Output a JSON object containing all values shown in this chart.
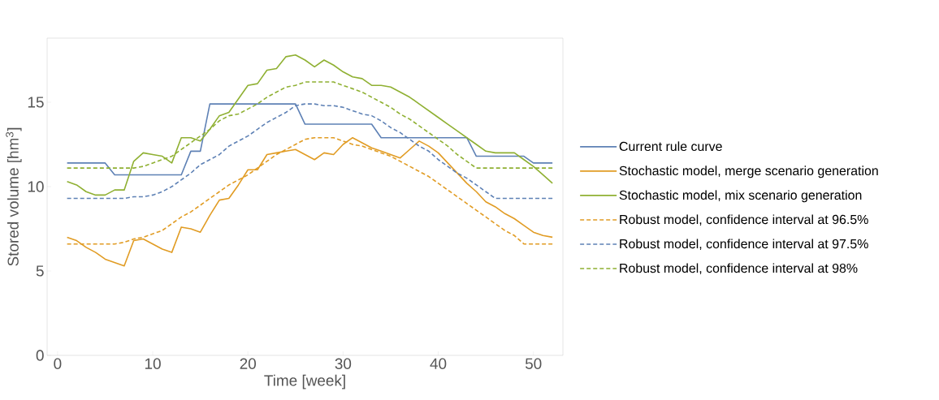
{
  "chart_data": {
    "type": "line",
    "xlabel": "Time [week]",
    "ylabel": "Stored volume [hm$^{3}$]",
    "xlim": [
      -1.1,
      53.1
    ],
    "ylim": [
      0,
      18.8
    ],
    "xticks": [
      0,
      10,
      20,
      30,
      40,
      50
    ],
    "yticks": [
      0,
      5,
      10,
      15
    ],
    "legend": "right",
    "x": [
      1,
      2,
      3,
      4,
      5,
      6,
      7,
      8,
      9,
      10,
      11,
      12,
      13,
      14,
      15,
      16,
      17,
      18,
      19,
      20,
      21,
      22,
      23,
      24,
      25,
      26,
      27,
      28,
      29,
      30,
      31,
      32,
      33,
      34,
      35,
      36,
      37,
      38,
      39,
      40,
      41,
      42,
      43,
      44,
      45,
      46,
      47,
      48,
      49,
      50,
      51,
      52
    ],
    "series": [
      {
        "name": "Current rule curve",
        "color": "#5e81b5",
        "line_style": "solid",
        "x": [
          1,
          5,
          6,
          13,
          14,
          15,
          16,
          25,
          26,
          33,
          34,
          43,
          44,
          49,
          50,
          52
        ],
        "values": [
          11.4,
          11.4,
          10.7,
          10.7,
          12.1,
          12.1,
          14.9,
          14.9,
          13.7,
          13.7,
          12.9,
          12.9,
          11.8,
          11.8,
          11.4,
          11.4
        ]
      },
      {
        "name": "Stochastic model, merge scenario generation",
        "color": "#e19c24",
        "line_style": "solid",
        "values": [
          7.0,
          6.8,
          6.4,
          6.1,
          5.7,
          5.5,
          5.3,
          6.8,
          6.9,
          6.6,
          6.3,
          6.1,
          7.6,
          7.5,
          7.3,
          8.3,
          9.2,
          9.3,
          10.1,
          11.0,
          11.0,
          11.9,
          12.0,
          12.1,
          12.2,
          11.9,
          11.6,
          12.0,
          11.9,
          12.5,
          12.9,
          12.6,
          12.3,
          12.1,
          11.9,
          11.7,
          12.2,
          12.7,
          12.4,
          12.0,
          11.4,
          10.8,
          10.2,
          9.7,
          9.1,
          8.8,
          8.4,
          8.1,
          7.7,
          7.3,
          7.1,
          7.0
        ]
      },
      {
        "name": "Stochastic model, mix scenario generation",
        "color": "#8fb032",
        "line_style": "solid",
        "values": [
          10.3,
          10.1,
          9.7,
          9.5,
          9.5,
          9.8,
          9.8,
          11.5,
          12.0,
          11.9,
          11.8,
          11.4,
          12.9,
          12.9,
          12.7,
          13.4,
          14.2,
          14.4,
          15.2,
          16.0,
          16.1,
          16.9,
          17.0,
          17.7,
          17.8,
          17.5,
          17.1,
          17.5,
          17.2,
          16.8,
          16.5,
          16.4,
          16.0,
          16.0,
          15.9,
          15.6,
          15.3,
          14.9,
          14.5,
          14.1,
          13.7,
          13.3,
          12.9,
          12.5,
          12.1,
          12.0,
          12.0,
          12.0,
          11.6,
          11.2,
          10.7,
          10.2
        ]
      },
      {
        "name": "Robust model, confidence interval at 96.5%",
        "color": "#e19c24",
        "line_style": "dashed",
        "values": [
          6.6,
          6.6,
          6.6,
          6.6,
          6.6,
          6.6,
          6.7,
          6.9,
          7.0,
          7.2,
          7.4,
          7.8,
          8.2,
          8.5,
          8.9,
          9.3,
          9.7,
          10.1,
          10.4,
          10.7,
          11.1,
          11.5,
          11.9,
          12.2,
          12.5,
          12.8,
          12.9,
          12.9,
          12.9,
          12.7,
          12.5,
          12.4,
          12.2,
          12.0,
          11.8,
          11.5,
          11.2,
          10.9,
          10.6,
          10.2,
          9.8,
          9.4,
          9.0,
          8.6,
          8.2,
          7.8,
          7.4,
          7.1,
          6.6,
          6.6,
          6.6,
          6.6
        ]
      },
      {
        "name": "Robust model, confidence interval at 97.5%",
        "color": "#5e81b5",
        "line_style": "dashed",
        "values": [
          9.3,
          9.3,
          9.3,
          9.3,
          9.3,
          9.3,
          9.3,
          9.4,
          9.4,
          9.5,
          9.7,
          10.0,
          10.4,
          10.8,
          11.3,
          11.6,
          11.9,
          12.4,
          12.7,
          13.0,
          13.4,
          13.8,
          14.1,
          14.4,
          14.8,
          14.9,
          14.9,
          14.8,
          14.8,
          14.7,
          14.5,
          14.3,
          14.2,
          13.9,
          13.5,
          13.2,
          12.8,
          12.4,
          12.1,
          11.6,
          11.2,
          10.8,
          10.5,
          10.1,
          9.7,
          9.3,
          9.3,
          9.3,
          9.3,
          9.3,
          9.3,
          9.3
        ]
      },
      {
        "name": "Robust model, confidence interval at 98%",
        "color": "#8fb032",
        "line_style": "dashed",
        "values": [
          11.1,
          11.1,
          11.1,
          11.1,
          11.1,
          11.1,
          11.1,
          11.1,
          11.2,
          11.4,
          11.6,
          11.8,
          12.2,
          12.6,
          13.0,
          13.4,
          13.9,
          14.2,
          14.3,
          14.6,
          14.9,
          15.3,
          15.6,
          15.9,
          16.0,
          16.2,
          16.2,
          16.2,
          16.2,
          16.0,
          15.8,
          15.6,
          15.3,
          15.0,
          14.7,
          14.3,
          14.0,
          13.6,
          13.2,
          12.8,
          12.4,
          11.9,
          11.5,
          11.1,
          11.1,
          11.1,
          11.1,
          11.1,
          11.1,
          11.1,
          11.1,
          11.1
        ]
      }
    ]
  }
}
